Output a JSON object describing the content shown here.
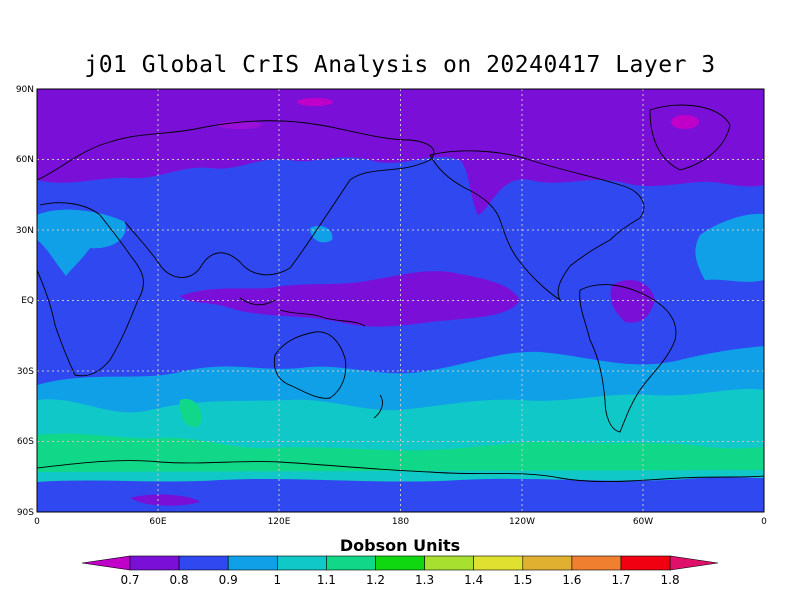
{
  "title": "j01 Global CrIS Analysis on 20240417 Layer 3",
  "lat_labels": [
    "90N",
    "60N",
    "30N",
    "EQ",
    "30S",
    "60S",
    "90S"
  ],
  "lon_labels": [
    "0",
    "60E",
    "120E",
    "180",
    "120W",
    "60W",
    "0"
  ],
  "colorbar": {
    "units_label": "Dobson Units",
    "tick_labels": [
      "0.7",
      "0.8",
      "0.9",
      "1",
      "1.1",
      "1.2",
      "1.3",
      "1.4",
      "1.5",
      "1.6",
      "1.7",
      "1.8"
    ],
    "colors": [
      "#c000c8",
      "#7a10d8",
      "#3048f0",
      "#10a0e8",
      "#10c8c8",
      "#10d888",
      "#10d810",
      "#a8e030",
      "#e0e030",
      "#e0b030",
      "#f08030",
      "#f00010",
      "#e0106a"
    ]
  },
  "colors": {
    "band_violet": "#7a10d8",
    "band_blue": "#3048f0",
    "band_lightblue": "#10a0e8",
    "band_cyan": "#10c8c8",
    "band_green": "#10d888",
    "band_magenta": "#c000c8",
    "coast": "#000000",
    "grid": "#c8c8c8"
  }
}
